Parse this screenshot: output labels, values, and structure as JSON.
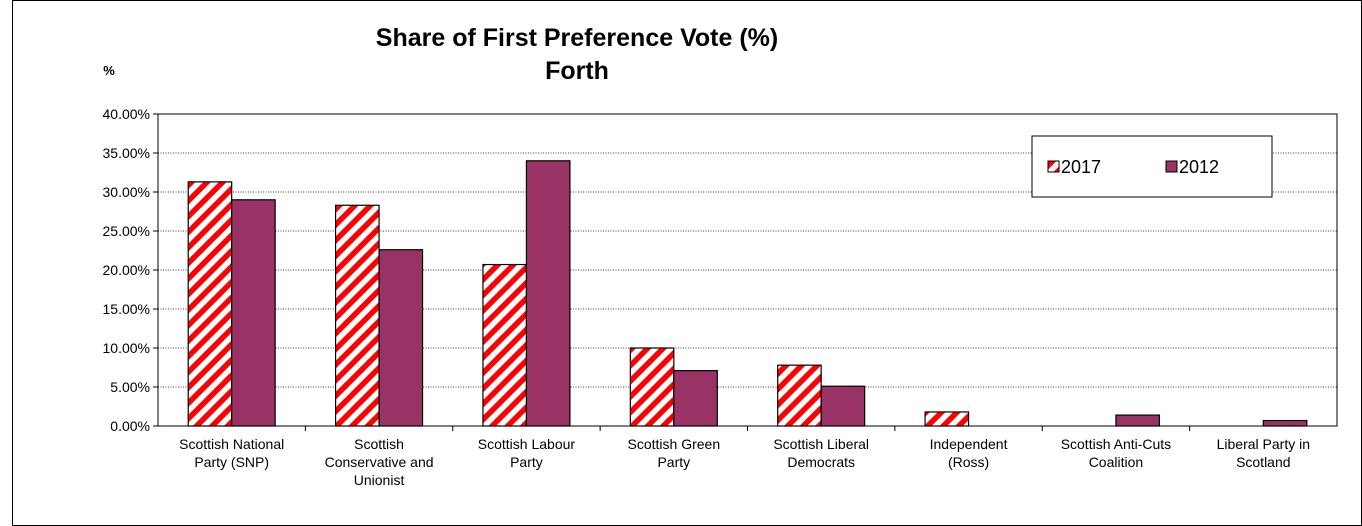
{
  "chart_data": {
    "type": "bar",
    "title": "Share of First Preference Vote (%)",
    "subtitle": "Forth",
    "ylabel": "%",
    "ylim": [
      0,
      0.4
    ],
    "yticks": [
      "0.00%",
      "5.00%",
      "10.00%",
      "15.00%",
      "20.00%",
      "25.00%",
      "30.00%",
      "35.00%",
      "40.00%"
    ],
    "grid": true,
    "legend_position": "top-right",
    "categories": [
      [
        "Scottish National",
        "Party (SNP)"
      ],
      [
        "Scottish",
        "Conservative and",
        "Unionist"
      ],
      [
        "Scottish Labour",
        "Party"
      ],
      [
        "Scottish Green",
        "Party"
      ],
      [
        "Scottish Liberal",
        "Democrats"
      ],
      [
        "Independent",
        "(Ross)"
      ],
      [
        "Scottish Anti-Cuts",
        "Coalition"
      ],
      [
        "Liberal Party in",
        "Scotland"
      ]
    ],
    "series": [
      {
        "name": "2017",
        "pattern": "diagonal-stripes",
        "color": "#ff0000",
        "values": [
          0.313,
          0.283,
          0.207,
          0.1,
          0.078,
          0.018,
          null,
          null
        ]
      },
      {
        "name": "2012",
        "pattern": "solid",
        "color": "#993366",
        "values": [
          0.29,
          0.226,
          0.34,
          0.071,
          0.051,
          null,
          0.014,
          0.007
        ]
      }
    ]
  }
}
